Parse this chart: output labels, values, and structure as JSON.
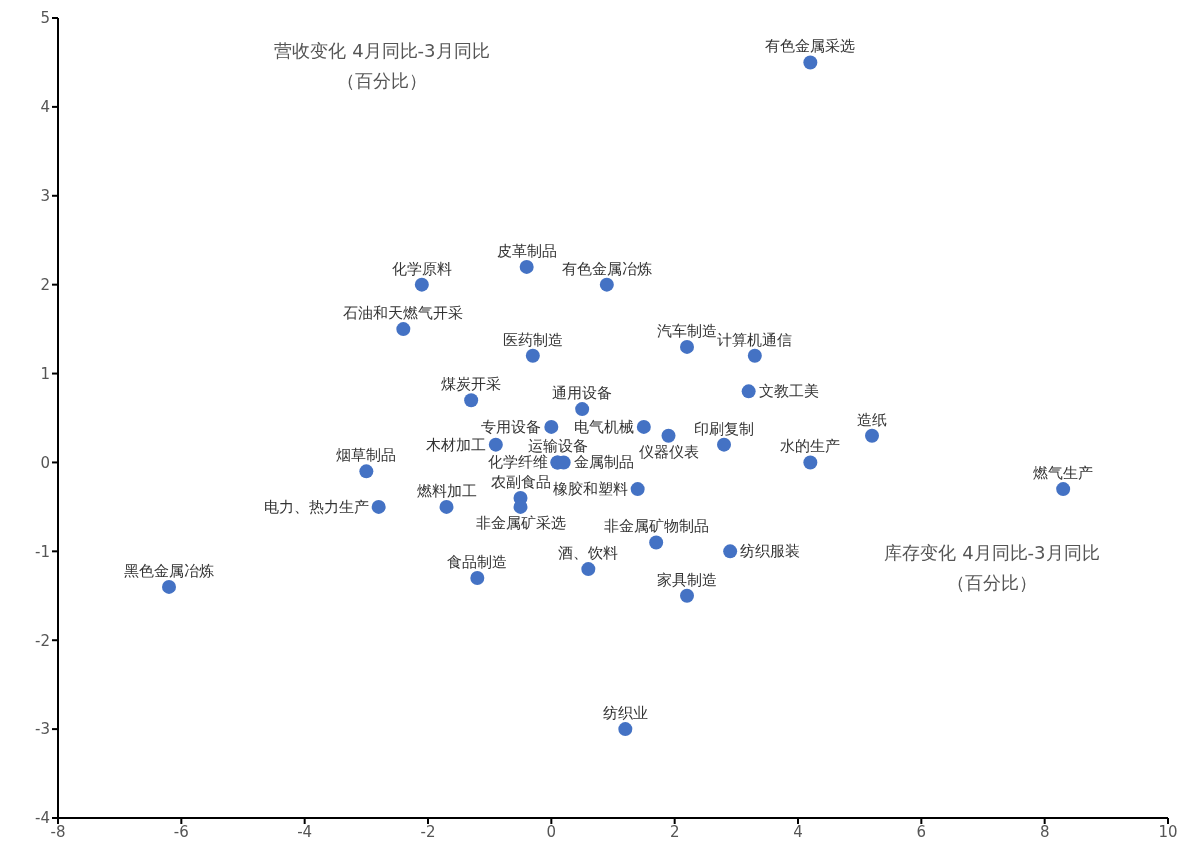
{
  "chart_data": {
    "type": "scatter",
    "xlabel": "库存变化 4月同比-3月同比（百分比）",
    "ylabel": "营收变化 4月同比-3月同比（百分比）",
    "xlim": [
      -8,
      10
    ],
    "xticks": [
      -8,
      -6,
      -4,
      -2,
      0,
      2,
      4,
      6,
      8,
      10
    ],
    "ylim": [
      -4,
      5
    ],
    "yticks": [
      -4,
      -3,
      -2,
      -1,
      0,
      1,
      2,
      3,
      4,
      5
    ],
    "grid": false,
    "legend": false,
    "marker": "circle",
    "series": [
      {
        "name": "有色金属采选",
        "color": "#4472c4",
        "x": [
          4.2
        ],
        "values": [
          4.5
        ]
      },
      {
        "name": "皮革制品",
        "color": "#4472c4",
        "x": [
          -0.4
        ],
        "values": [
          2.2
        ]
      },
      {
        "name": "化学原料",
        "color": "#4472c4",
        "x": [
          -2.1
        ],
        "values": [
          2.0
        ]
      },
      {
        "name": "有色金属冶炼",
        "color": "#4472c4",
        "x": [
          0.9
        ],
        "values": [
          2.0
        ]
      },
      {
        "name": "石油和天燃气开采",
        "color": "#4472c4",
        "x": [
          -2.4
        ],
        "values": [
          1.5
        ]
      },
      {
        "name": "医药制造",
        "color": "#4472c4",
        "x": [
          -0.3
        ],
        "values": [
          1.2
        ]
      },
      {
        "name": "汽车制造",
        "color": "#4472c4",
        "x": [
          2.2
        ],
        "values": [
          1.3
        ]
      },
      {
        "name": "计算机通信",
        "color": "#4472c4",
        "x": [
          3.3
        ],
        "values": [
          1.2
        ]
      },
      {
        "name": "文教工美",
        "color": "#4472c4",
        "x": [
          3.2
        ],
        "values": [
          0.8
        ]
      },
      {
        "name": "煤炭开采",
        "color": "#4472c4",
        "x": [
          -1.3
        ],
        "values": [
          0.7
        ]
      },
      {
        "name": "通用设备",
        "color": "#4472c4",
        "x": [
          0.5
        ],
        "values": [
          0.6
        ]
      },
      {
        "name": "专用设备",
        "color": "#4472c4",
        "x": [
          0.0
        ],
        "values": [
          0.4
        ]
      },
      {
        "name": "电气机械",
        "color": "#4472c4",
        "x": [
          1.5
        ],
        "values": [
          0.4
        ]
      },
      {
        "name": "仪器仪表",
        "color": "#4472c4",
        "x": [
          1.9
        ],
        "values": [
          0.3
        ]
      },
      {
        "name": "印刷复制",
        "color": "#4472c4",
        "x": [
          2.8
        ],
        "values": [
          0.2
        ]
      },
      {
        "name": "造纸",
        "color": "#4472c4",
        "x": [
          5.2
        ],
        "values": [
          0.3
        ]
      },
      {
        "name": "木材加工",
        "color": "#4472c4",
        "x": [
          -0.9
        ],
        "values": [
          0.2
        ]
      },
      {
        "name": "化学纤维",
        "color": "#4472c4",
        "x": [
          0.1
        ],
        "values": [
          0.0
        ]
      },
      {
        "name": "运输设备",
        "color": "#4472c4",
        "x": [
          0.1
        ],
        "values": [
          0.0
        ]
      },
      {
        "name": "金属制品",
        "color": "#4472c4",
        "x": [
          0.2
        ],
        "values": [
          0.0
        ]
      },
      {
        "name": "水的生产",
        "color": "#4472c4",
        "x": [
          4.2
        ],
        "values": [
          0.0
        ]
      },
      {
        "name": "燃气生产",
        "color": "#4472c4",
        "x": [
          8.3
        ],
        "values": [
          -0.3
        ]
      },
      {
        "name": "烟草制品",
        "color": "#4472c4",
        "x": [
          -3.0
        ],
        "values": [
          -0.1
        ]
      },
      {
        "name": "橡胶和塑料",
        "color": "#4472c4",
        "x": [
          1.4
        ],
        "values": [
          -0.3
        ]
      },
      {
        "name": "电力、热力生产",
        "color": "#4472c4",
        "x": [
          -2.8
        ],
        "values": [
          -0.5
        ]
      },
      {
        "name": "燃料加工",
        "color": "#4472c4",
        "x": [
          -1.7
        ],
        "values": [
          -0.5
        ]
      },
      {
        "name": "农副食品",
        "color": "#4472c4",
        "x": [
          -0.5
        ],
        "values": [
          -0.4
        ]
      },
      {
        "name": "非金属矿采选",
        "color": "#4472c4",
        "x": [
          -0.5
        ],
        "values": [
          -0.5
        ]
      },
      {
        "name": "非金属矿物制品",
        "color": "#4472c4",
        "x": [
          1.7
        ],
        "values": [
          -0.9
        ]
      },
      {
        "name": "纺织服装",
        "color": "#4472c4",
        "x": [
          2.9
        ],
        "values": [
          -1.0
        ]
      },
      {
        "name": "酒、饮料",
        "color": "#4472c4",
        "x": [
          0.6
        ],
        "values": [
          -1.2
        ]
      },
      {
        "name": "食品制造",
        "color": "#4472c4",
        "x": [
          -1.2
        ],
        "values": [
          -1.3
        ]
      },
      {
        "name": "家具制造",
        "color": "#4472c4",
        "x": [
          2.2
        ],
        "values": [
          -1.5
        ]
      },
      {
        "name": "黑色金属冶炼",
        "color": "#4472c4",
        "x": [
          -6.2
        ],
        "values": [
          -1.4
        ]
      },
      {
        "name": "纺织业",
        "color": "#4472c4",
        "x": [
          1.2
        ],
        "values": [
          -3.0
        ]
      }
    ]
  }
}
